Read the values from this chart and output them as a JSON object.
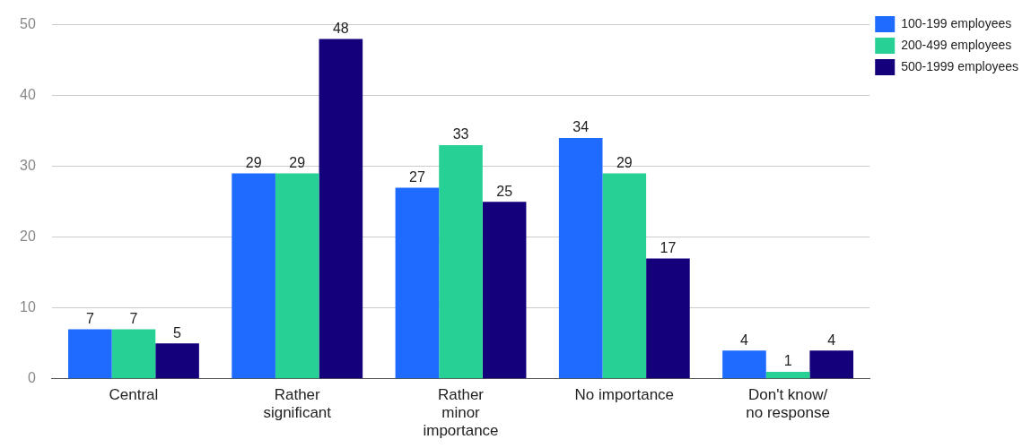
{
  "chart_data": {
    "type": "bar",
    "categories": [
      "Central",
      "Rather\nsignificant",
      "Rather\nminor\nimportance",
      "No importance",
      "Don't know/\nno response"
    ],
    "series": [
      {
        "name": "100-199 employees",
        "color": "#1f6bff",
        "values": [
          7,
          29,
          27,
          34,
          4
        ]
      },
      {
        "name": "200-499 employees",
        "color": "#27d094",
        "values": [
          7,
          29,
          33,
          29,
          1
        ]
      },
      {
        "name": "500-1999 employees",
        "color": "#14007a",
        "values": [
          5,
          48,
          25,
          17,
          4
        ]
      }
    ],
    "ylim": [
      0,
      50
    ],
    "yticks": [
      0,
      10,
      20,
      30,
      40,
      50
    ],
    "grid": "y",
    "legend": "top right",
    "data_labels": true
  }
}
